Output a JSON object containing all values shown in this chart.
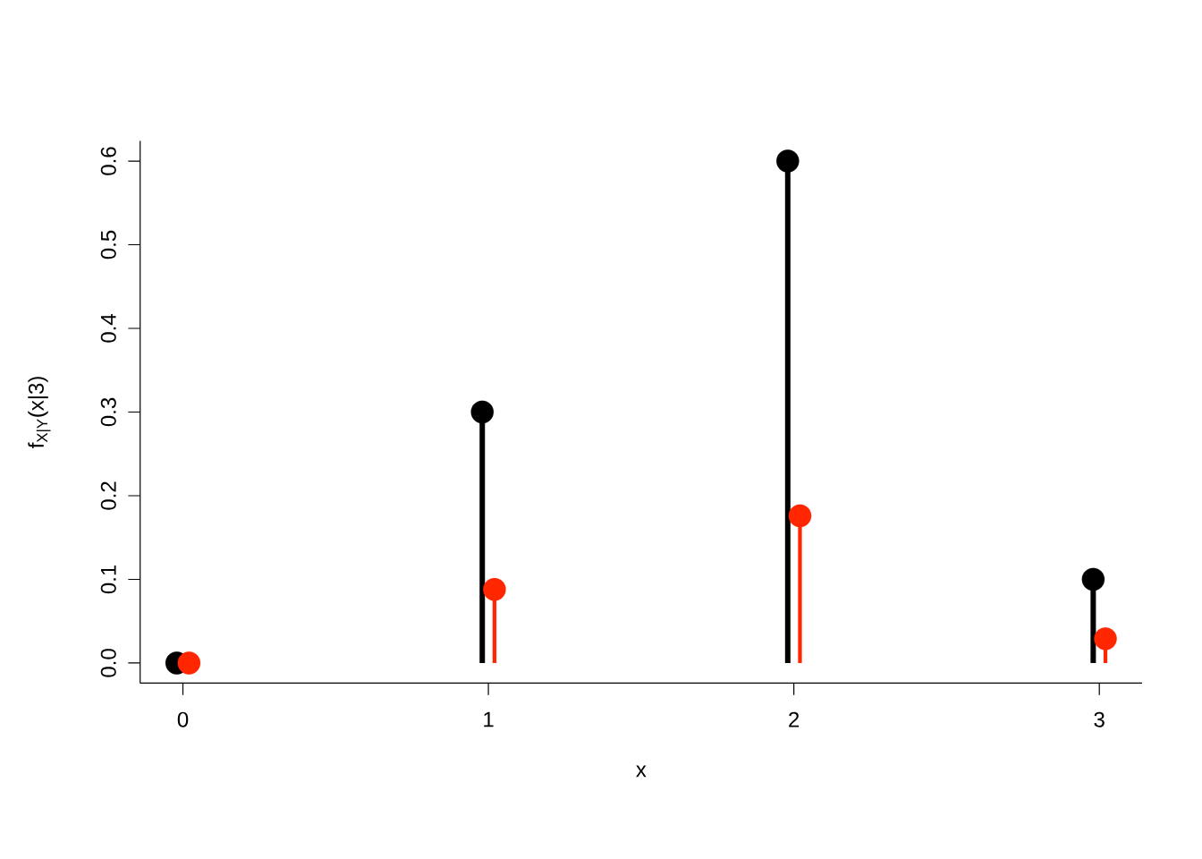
{
  "chart_data": {
    "type": "lollipop",
    "xlabel": "x",
    "ylabel": "f$_{X|Y}$(x|3)",
    "marker": "circle",
    "xlim": [
      -0.14,
      3.14
    ],
    "ylim": [
      -0.024,
      0.624
    ],
    "xticks": [
      0,
      1,
      2,
      3
    ],
    "yticks": [
      {
        "value": 0,
        "label": "0.0"
      },
      0.1,
      0.2,
      0.3,
      0.4,
      0.5,
      0.6
    ],
    "series": [
      {
        "color": "#000000",
        "x": [
          -0.02,
          0.98,
          1.98,
          2.98
        ],
        "values": [
          0,
          0.3,
          0.6,
          0.1
        ]
      },
      {
        "color": "#ff2600",
        "x": [
          0.02,
          1.02,
          2.02,
          3.02
        ],
        "values": [
          0,
          0.088,
          0.176,
          0.029
        ]
      }
    ]
  }
}
